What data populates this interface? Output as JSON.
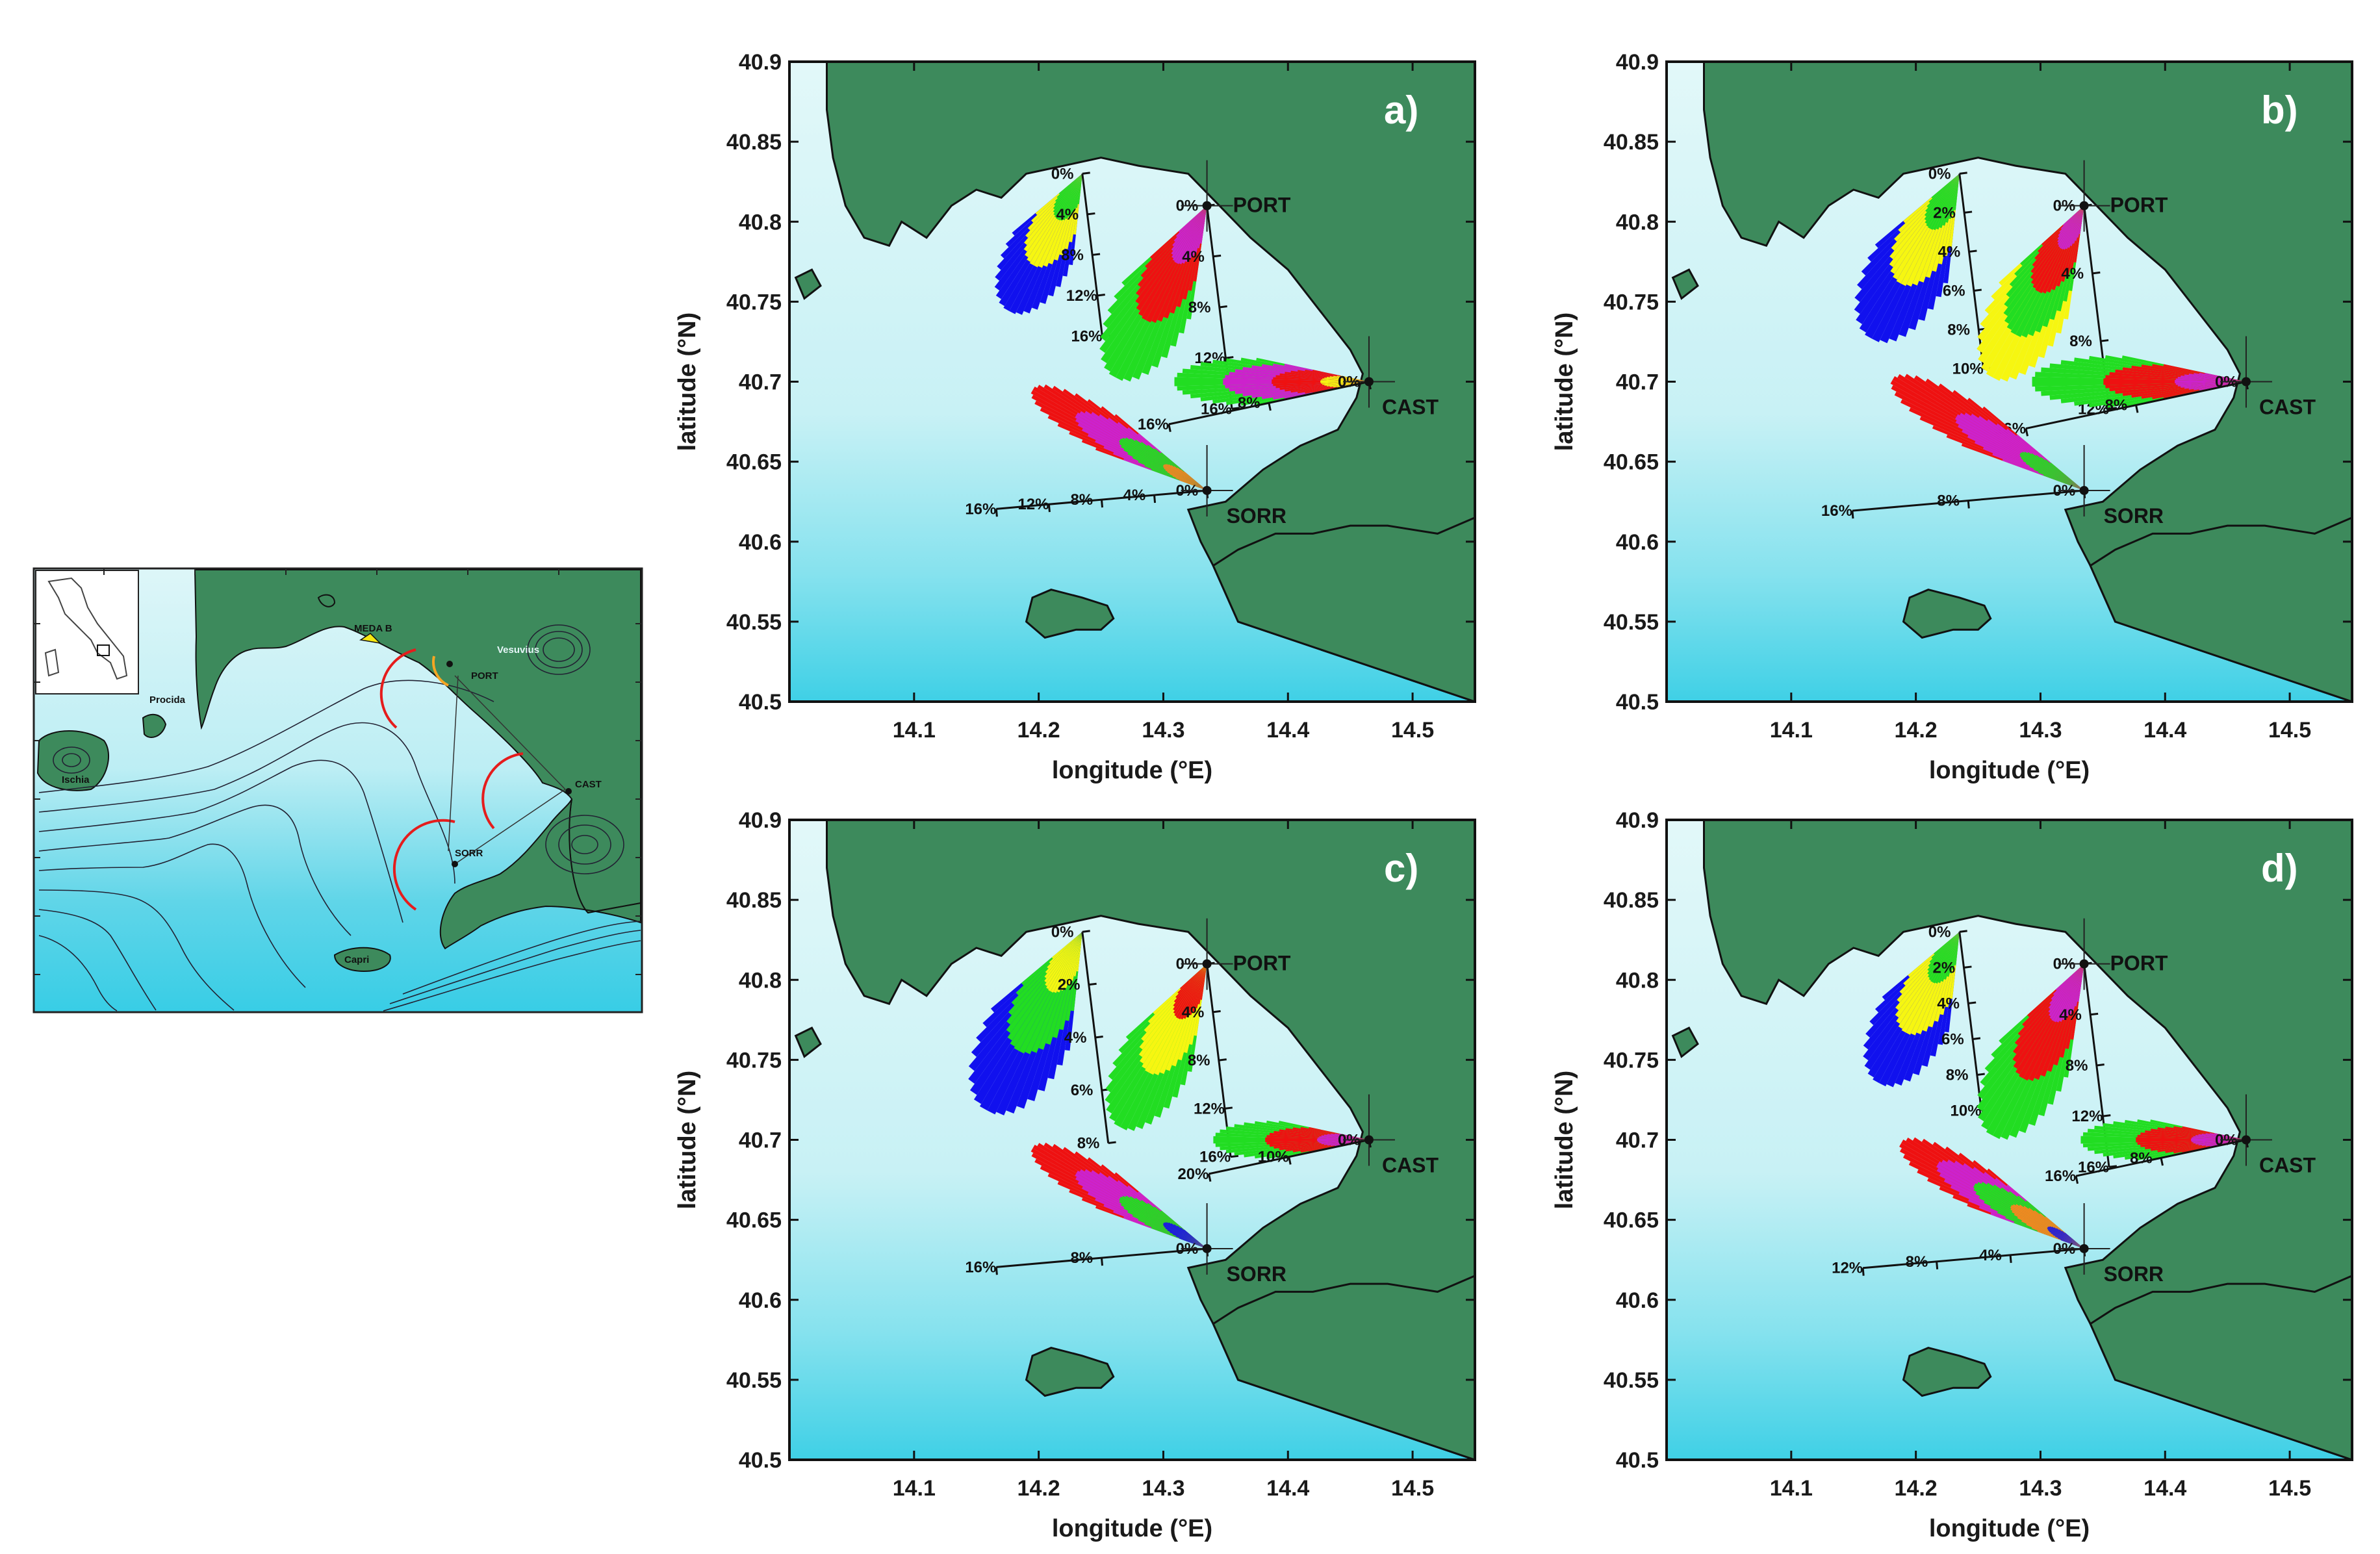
{
  "colors": {
    "land": "#3d8a5c",
    "sea_light": "#dff7f8",
    "sea_deep": "#40d2e8",
    "red": "#ee1111",
    "green": "#22dd22",
    "yellow": "#f6f611",
    "blue": "#1111ee",
    "magenta": "#cc22cc",
    "orange": "#f58a1e"
  },
  "overview_map": {
    "labels": {
      "meda": "MEDA B",
      "vesuvius": "Vesuvius",
      "procida": "Procida",
      "ischia": "Ischia",
      "capri": "Capri",
      "port": "PORT",
      "cast": "CAST",
      "sorr": "SORR"
    }
  },
  "chart_data": [
    {
      "type": "map",
      "panel": "a)",
      "xlabel": "longitude (°E)",
      "ylabel": "latitude (°N)",
      "xlim": [
        14.0,
        14.55
      ],
      "ylim": [
        40.5,
        40.9
      ],
      "x_ticks": [
        "14.1",
        "14.2",
        "14.3",
        "14.4",
        "14.5"
      ],
      "y_ticks": [
        "40.9",
        "40.85",
        "40.8",
        "40.75",
        "40.7",
        "40.65",
        "40.6",
        "40.55",
        "40.5"
      ],
      "stations": [
        "PORT",
        "CAST",
        "SORR"
      ],
      "scale_labels": {
        "meda": [
          "0%",
          "4%",
          "8%",
          "12%",
          "16%"
        ],
        "port": [
          "0%",
          "4%",
          "8%",
          "12%",
          "16%"
        ],
        "cast": [
          "0%",
          "8%",
          "16%"
        ],
        "sorr": [
          "0%",
          "4%",
          "8%",
          "12%",
          "16%"
        ]
      }
    },
    {
      "type": "map",
      "panel": "b)",
      "xlabel": "longitude (°E)",
      "ylabel": "latitude (°N)",
      "xlim": [
        14.0,
        14.55
      ],
      "ylim": [
        40.5,
        40.9
      ],
      "x_ticks": [
        "14.1",
        "14.2",
        "14.3",
        "14.4",
        "14.5"
      ],
      "y_ticks": [
        "40.9",
        "40.85",
        "40.8",
        "40.75",
        "40.7",
        "40.65",
        "40.6",
        "40.55",
        "40.5"
      ],
      "stations": [
        "PORT",
        "CAST",
        "SORR"
      ],
      "scale_labels": {
        "meda": [
          "0%",
          "2%",
          "4%",
          "6%",
          "8%",
          "10%"
        ],
        "port": [
          "0%",
          "4%",
          "8%",
          "12%"
        ],
        "cast": [
          "0%",
          "8%",
          "16%"
        ],
        "sorr": [
          "0%",
          "8%",
          "16%"
        ]
      }
    },
    {
      "type": "map",
      "panel": "c)",
      "xlabel": "longitude (°E)",
      "ylabel": "latitude (°N)",
      "xlim": [
        14.0,
        14.55
      ],
      "ylim": [
        40.5,
        40.9
      ],
      "x_ticks": [
        "14.1",
        "14.2",
        "14.3",
        "14.4",
        "14.5"
      ],
      "y_ticks": [
        "40.9",
        "40.85",
        "40.8",
        "40.75",
        "40.7",
        "40.65",
        "40.6",
        "40.55",
        "40.5"
      ],
      "stations": [
        "PORT",
        "CAST",
        "SORR"
      ],
      "scale_labels": {
        "meda": [
          "0%",
          "2%",
          "4%",
          "6%",
          "8%"
        ],
        "port": [
          "0%",
          "4%",
          "8%",
          "12%",
          "16%"
        ],
        "cast": [
          "0%",
          "10%",
          "20%"
        ],
        "sorr": [
          "0%",
          "8%",
          "16%"
        ]
      }
    },
    {
      "type": "map",
      "panel": "d)",
      "xlabel": "longitude (°E)",
      "ylabel": "latitude (°N)",
      "xlim": [
        14.0,
        14.55
      ],
      "ylim": [
        40.5,
        40.9
      ],
      "x_ticks": [
        "14.1",
        "14.2",
        "14.3",
        "14.4",
        "14.5"
      ],
      "y_ticks": [
        "40.9",
        "40.85",
        "40.8",
        "40.75",
        "40.7",
        "40.65",
        "40.6",
        "40.55",
        "40.5"
      ],
      "stations": [
        "PORT",
        "CAST",
        "SORR"
      ],
      "scale_labels": {
        "meda": [
          "0%",
          "2%",
          "4%",
          "6%",
          "8%",
          "10%"
        ],
        "port": [
          "0%",
          "4%",
          "8%",
          "12%",
          "16%"
        ],
        "cast": [
          "0%",
          "8%",
          "16%"
        ],
        "sorr": [
          "0%",
          "4%",
          "8%",
          "12%"
        ]
      }
    }
  ]
}
